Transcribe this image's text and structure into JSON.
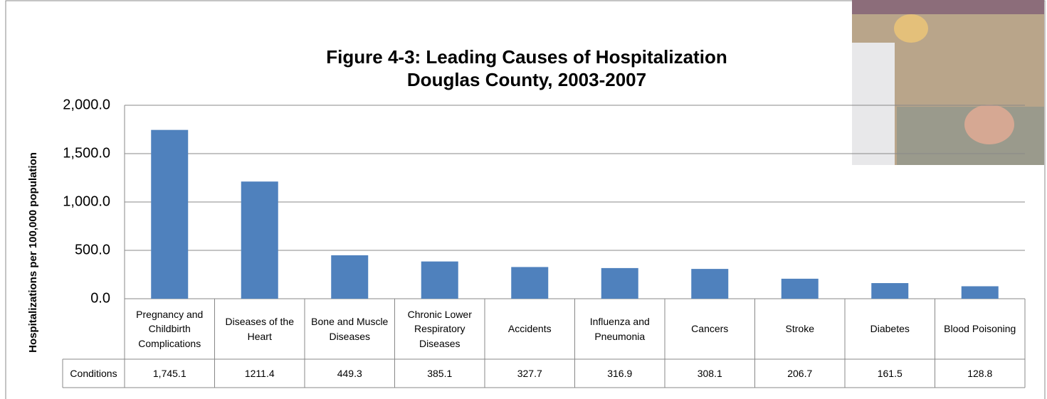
{
  "chart_data": {
    "type": "bar",
    "title": "Figure 4-3: Leading Causes of Hospitalization",
    "subtitle": "Douglas County, 2003-2007",
    "y_label": "Hospitalizations per 100,000 population",
    "categories": [
      "Pregnancy and Childbirth Complications",
      "Diseases of the Heart",
      "Bone and Muscle Diseases",
      "Chronic Lower Respiratory Diseases",
      "Accidents",
      "Influenza and Pneumonia",
      "Cancers",
      "Stroke",
      "Diabetes",
      "Blood Poisoning"
    ],
    "series": [
      {
        "name": "Conditions",
        "color": "#4f81bd",
        "values": [
          1745.1,
          1211.4,
          449.3,
          385.1,
          327.7,
          316.9,
          308.1,
          206.7,
          161.5,
          128.8
        ],
        "value_labels": [
          "1,745.1",
          "1211.4",
          "449.3",
          "385.1",
          "327.7",
          "316.9",
          "308.1",
          "206.7",
          "161.5",
          "128.8"
        ]
      }
    ],
    "ylim": [
      0,
      2000
    ],
    "yticks": [
      {
        "value": 0,
        "label": "0.0"
      },
      {
        "value": 500,
        "label": "500.0"
      },
      {
        "value": 1000,
        "label": "1,000.0"
      },
      {
        "value": 1500,
        "label": "1,500.0"
      },
      {
        "value": 2000,
        "label": "2,000.0"
      }
    ],
    "grid": true
  }
}
